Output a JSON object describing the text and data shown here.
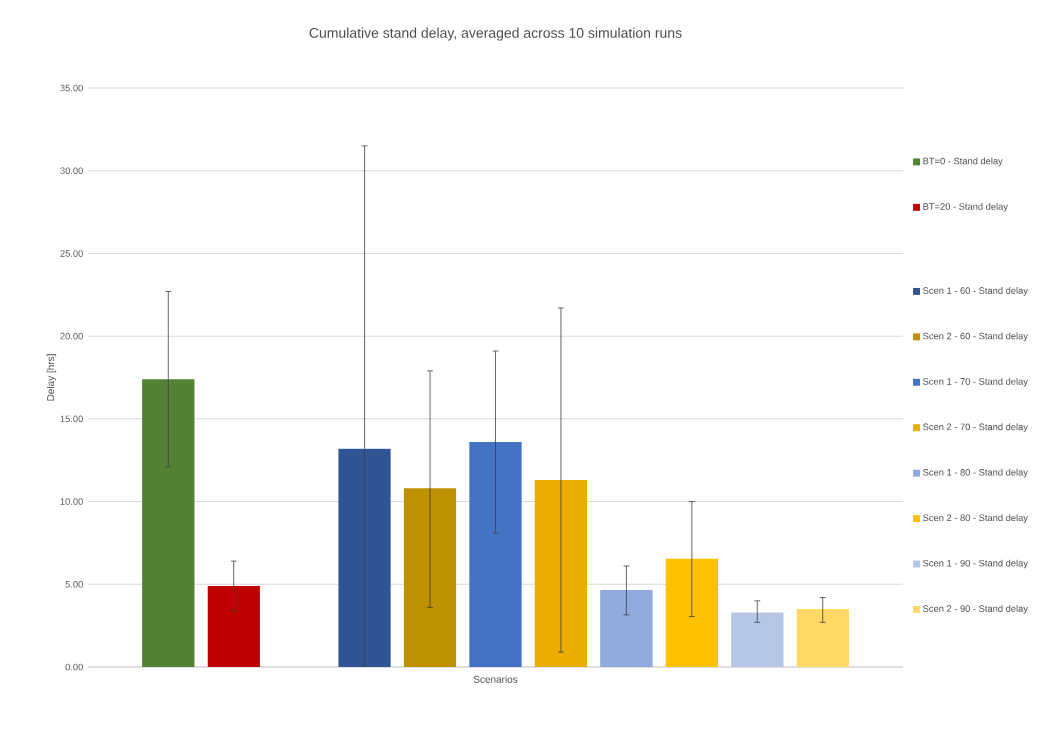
{
  "chart_data": {
    "type": "bar",
    "title": "Cumulative stand delay, averaged across 10 simulation runs",
    "xlabel": "Scenarios",
    "ylabel": "Delay [hrs]",
    "categories": [
      null
    ],
    "series": [
      {
        "name": "BT=0 - Stand delay",
        "color": "#548235",
        "values": [
          17.4
        ],
        "errors": [
          [
            12.1,
            22.7
          ]
        ]
      },
      {
        "name": "BT=20 - Stand delay",
        "color": "#c00000",
        "values": [
          4.9
        ],
        "errors": [
          [
            3.4,
            6.4
          ]
        ]
      },
      {
        "values": [
          null
        ]
      },
      {
        "name": "Scen 1 - 60 - Stand delay",
        "color": "#2f5597",
        "values": [
          13.2
        ],
        "errors": [
          [
            0,
            31.5
          ]
        ]
      },
      {
        "name": "Scen 2 - 60 - Stand delay",
        "color": "#bf9000",
        "values": [
          10.8
        ],
        "errors": [
          [
            3.6,
            17.9
          ]
        ]
      },
      {
        "name": "Scen 1 - 70 - Stand delay",
        "color": "#4472c4",
        "values": [
          13.6
        ],
        "errors": [
          [
            8.1,
            19.1
          ]
        ]
      },
      {
        "name": "Scen 2 - 70 - Stand delay",
        "color": "#eaad00",
        "values": [
          11.3
        ],
        "errors": [
          [
            0.9,
            21.7
          ]
        ]
      },
      {
        "name": "Scen 1 - 80 - Stand delay",
        "color": "#8faadc",
        "values": [
          4.65
        ],
        "errors": [
          [
            3.15,
            6.1
          ]
        ]
      },
      {
        "name": "Scen 2 - 80 - Stand delay",
        "color": "#ffc000",
        "values": [
          6.55
        ],
        "errors": [
          [
            3.05,
            10.0
          ]
        ]
      },
      {
        "name": "Scen 1 - 90 - Stand delay",
        "color": "#b4c7e7",
        "values": [
          3.3
        ],
        "errors": [
          [
            2.7,
            4.0
          ]
        ]
      },
      {
        "name": "Scen 2 - 90 - Stand delay",
        "color": "#ffd966",
        "values": [
          3.5
        ],
        "errors": [
          [
            2.7,
            4.2
          ]
        ]
      }
    ],
    "ylim": [
      0,
      35
    ],
    "yticks": [
      {
        "value": 0,
        "label": "0.00"
      },
      {
        "value": 5,
        "label": "5.00"
      },
      {
        "value": 10,
        "label": "10.00"
      },
      {
        "value": 15,
        "label": "15.00"
      },
      {
        "value": 20,
        "label": "20.00"
      },
      {
        "value": 25,
        "label": "25.00"
      },
      {
        "value": 30,
        "label": "30.00"
      },
      {
        "value": 35,
        "label": "35.00"
      }
    ],
    "grid": "y",
    "legend": "right"
  }
}
